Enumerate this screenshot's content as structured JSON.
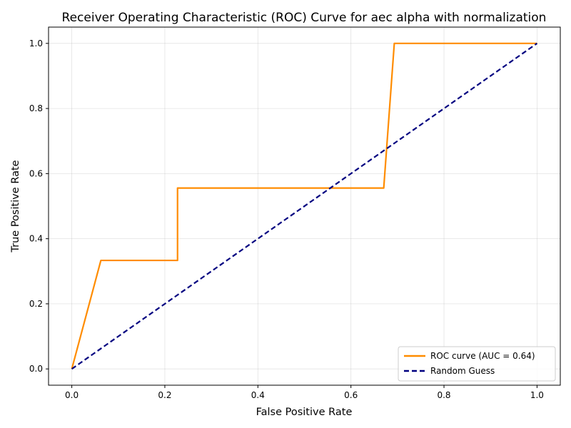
{
  "chart_data": {
    "type": "line",
    "title": "Receiver Operating Characteristic (ROC) Curve for aec alpha with normalization",
    "xlabel": "False Positive Rate",
    "ylabel": "True Positive Rate",
    "xlim": [
      -0.05,
      1.05
    ],
    "ylim": [
      -0.05,
      1.05
    ],
    "x_ticks": [
      "0.0",
      "0.2",
      "0.4",
      "0.6",
      "0.8",
      "1.0"
    ],
    "y_ticks": [
      "0.0",
      "0.2",
      "0.4",
      "0.6",
      "0.8",
      "1.0"
    ],
    "grid": true,
    "legend_position": "lower-right",
    "series": [
      {
        "name": "ROC curve (AUC = 0.64)",
        "color": "#ff8c00",
        "style": "solid",
        "x": [
          0.0,
          0.0625,
          0.2273,
          0.2273,
          0.6705,
          0.6932,
          1.0
        ],
        "y": [
          0.0,
          0.3333,
          0.3333,
          0.5556,
          0.5556,
          1.0,
          1.0
        ]
      },
      {
        "name": "Random Guess",
        "color": "#000080",
        "style": "dashed",
        "x": [
          0.0,
          1.0
        ],
        "y": [
          0.0,
          1.0
        ]
      }
    ]
  }
}
